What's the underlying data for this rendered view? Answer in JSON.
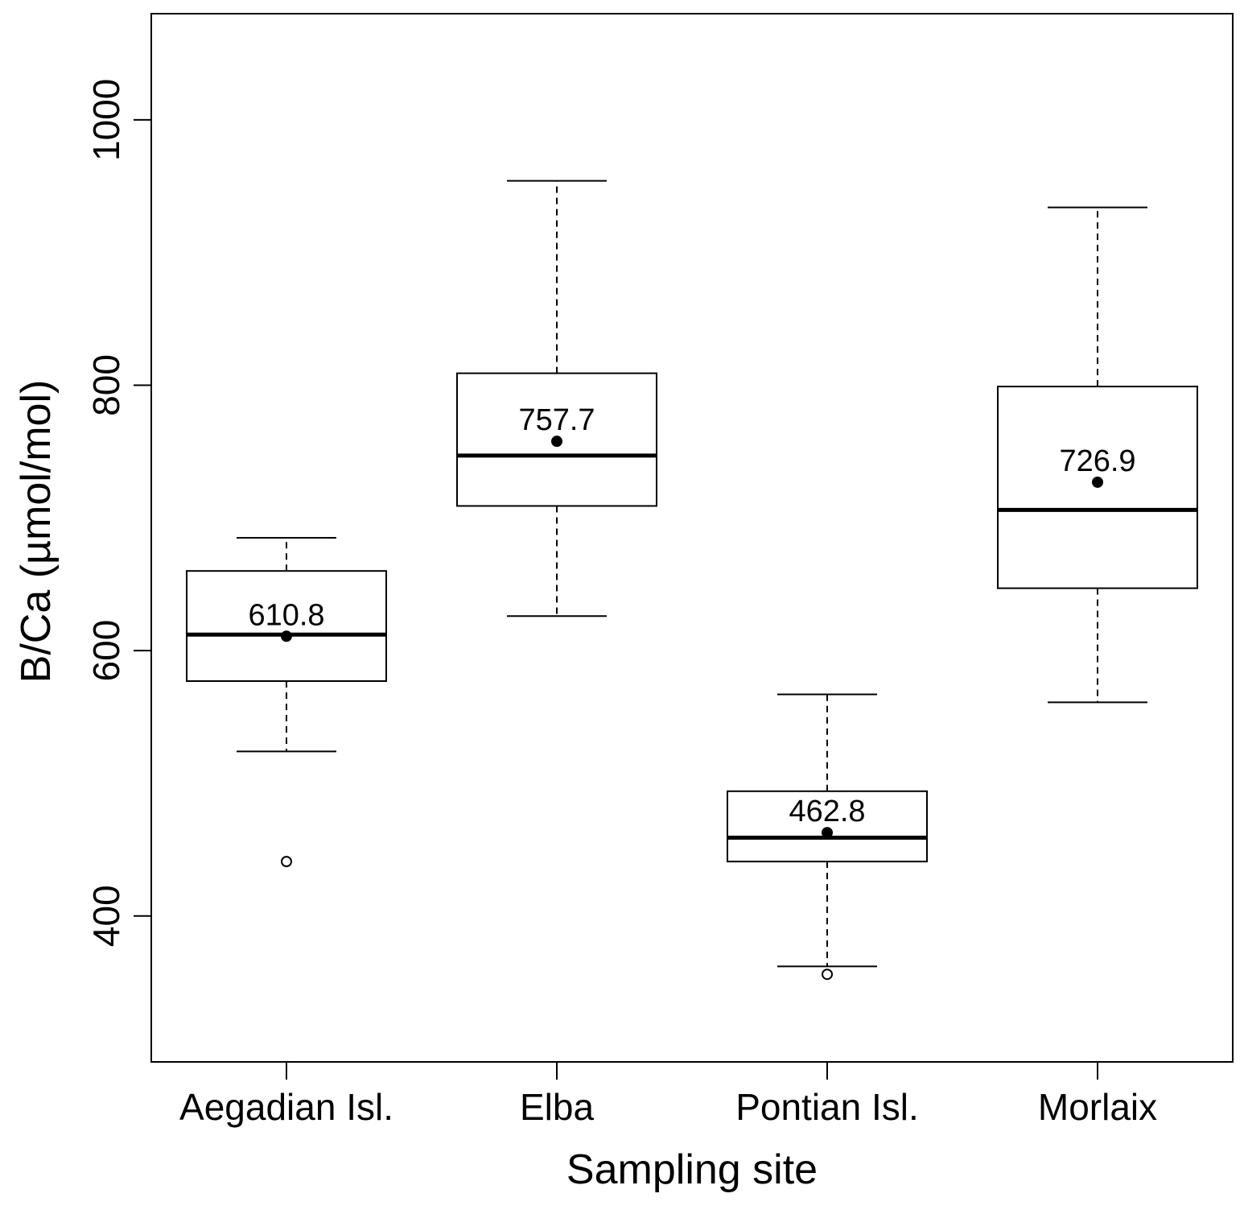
{
  "chart_data": {
    "type": "boxplot",
    "title": "",
    "xlabel": "Sampling site",
    "ylabel": "B/Ca (µmol/mol)",
    "ylim": [
      290,
      1080
    ],
    "yticks": [
      400,
      600,
      800,
      1000
    ],
    "ytick_labels": [
      "400",
      "600",
      "800",
      "1000"
    ],
    "grid": false,
    "legend": "none",
    "categories": [
      "Aegadian Isl.",
      "Elba",
      "Pontian Isl.",
      "Morlaix"
    ],
    "boxes": [
      {
        "category": "Aegadian Isl.",
        "whisker_low": 524,
        "q1": 577,
        "median": 612,
        "q3": 660,
        "whisker_high": 685,
        "mean": 610.8,
        "mean_label": "610.8",
        "outliers": [
          441
        ]
      },
      {
        "category": "Elba",
        "whisker_low": 626,
        "q1": 709,
        "median": 747,
        "q3": 809,
        "whisker_high": 954,
        "mean": 757.7,
        "mean_label": "757.7",
        "outliers": []
      },
      {
        "category": "Pontian Isl.",
        "whisker_low": 362,
        "q1": 441,
        "median": 459,
        "q3": 494,
        "whisker_high": 567,
        "mean": 462.8,
        "mean_label": "462.8",
        "outliers": [
          356
        ]
      },
      {
        "category": "Morlaix",
        "whisker_low": 561,
        "q1": 647,
        "median": 706,
        "q3": 799,
        "whisker_high": 934,
        "mean": 726.9,
        "mean_label": "726.9",
        "outliers": []
      }
    ]
  }
}
